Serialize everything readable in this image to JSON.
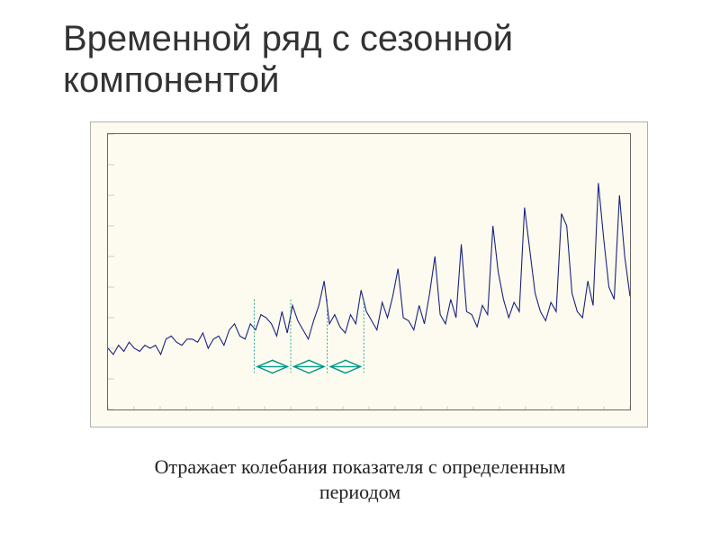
{
  "title": "Временной ряд с сезонной компонентой",
  "caption_line1": "Отражает колебания показателя с определенным",
  "caption_line2": "периодом",
  "chart": {
    "type": "line",
    "background_color": "#fdfbef",
    "outer_border_color": "#b0b0b0",
    "inner_border_color": "#666666",
    "tick_color": "#666666",
    "line_color": "#1a237e",
    "line_width": 1.1,
    "marker_color": "#009688",
    "marker_line_width": 1.4,
    "xlim": [
      0,
      100
    ],
    "ylim": [
      10,
      100
    ],
    "xtick_step": 5,
    "ytick_step": 10,
    "values": [
      30,
      28,
      31,
      29,
      32,
      30,
      29,
      31,
      30,
      31,
      28,
      33,
      34,
      32,
      31,
      33,
      33,
      32,
      35,
      30,
      33,
      34,
      31,
      36,
      38,
      34,
      33,
      38,
      36,
      41,
      40,
      38,
      34,
      42,
      35,
      44,
      39,
      36,
      33,
      39,
      44,
      52,
      38,
      41,
      37,
      35,
      41,
      38,
      49,
      42,
      39,
      36,
      45,
      40,
      47,
      56,
      40,
      39,
      36,
      44,
      38,
      48,
      60,
      41,
      38,
      46,
      40,
      64,
      42,
      41,
      37,
      44,
      41,
      70,
      55,
      46,
      40,
      45,
      42,
      76,
      62,
      48,
      42,
      39,
      45,
      42,
      74,
      70,
      48,
      42,
      40,
      52,
      44,
      84,
      66,
      50,
      46,
      80,
      60,
      47
    ],
    "period_markers_x": [
      28,
      35,
      42,
      49
    ],
    "period_markers_y": 24,
    "period_markers_height": 22,
    "arrow_head": 3.0
  }
}
